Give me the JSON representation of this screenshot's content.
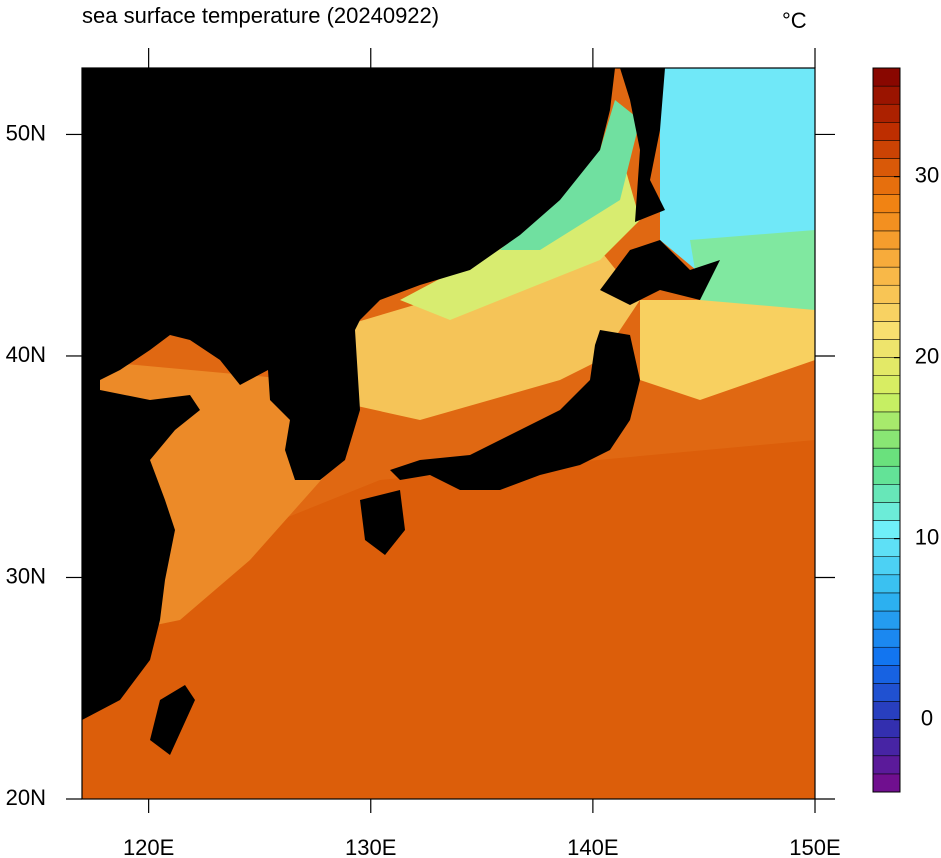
{
  "map": {
    "title": "sea surface temperature (20240922)",
    "unit": "°C",
    "xlim": [
      117,
      150
    ],
    "ylim": [
      20,
      53
    ],
    "xticks": [
      {
        "value": 120,
        "label": "120E"
      },
      {
        "value": 130,
        "label": "130E"
      },
      {
        "value": 140,
        "label": "140E"
      },
      {
        "value": 150,
        "label": "150E"
      }
    ],
    "yticks": [
      {
        "value": 20,
        "label": "20N"
      },
      {
        "value": 30,
        "label": "30N"
      },
      {
        "value": 40,
        "label": "40N"
      },
      {
        "value": 50,
        "label": "50N"
      }
    ],
    "colorbar": {
      "lim": [
        -4,
        36
      ],
      "ticks": [
        0,
        10,
        20,
        30
      ],
      "colors": [
        "#7a0a8a",
        "#3030b0",
        "#1070f0",
        "#30b8f0",
        "#70f0f8",
        "#60e080",
        "#d0f060",
        "#f8e070",
        "#f8b040",
        "#f08010",
        "#c03000",
        "#800000"
      ]
    }
  }
}
